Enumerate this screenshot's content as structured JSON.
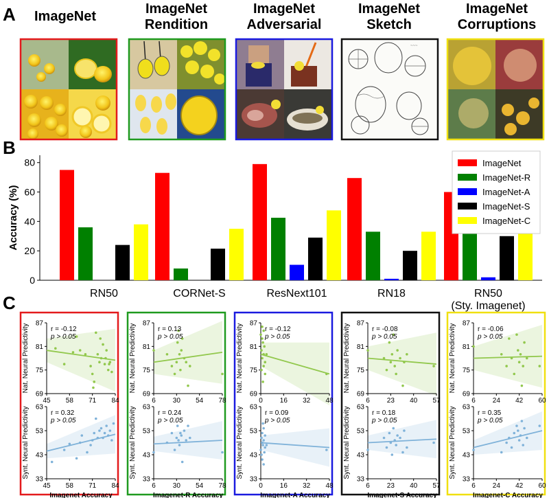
{
  "panel_letters": {
    "a": "A",
    "b": "B",
    "c": "C"
  },
  "panel_a": {
    "datasets": [
      {
        "line1": "ImageNet",
        "line2": "",
        "border": "#e31a1c"
      },
      {
        "line1": "ImageNet",
        "line2": "Rendition",
        "border": "#1f9a1f"
      },
      {
        "line1": "ImageNet",
        "line2": "Adversarial",
        "border": "#1a1adf"
      },
      {
        "line1": "ImageNet",
        "line2": "Sketch",
        "border": "#111111"
      },
      {
        "line1": "ImageNet",
        "line2": "Corruptions",
        "border": "#f0e010"
      }
    ]
  },
  "chart_data": [
    {
      "type": "bar",
      "panel": "B",
      "ylabel": "Accuracy (%)",
      "ylim": [
        0,
        85
      ],
      "yticks": [
        0,
        20,
        40,
        60,
        80
      ],
      "categories": [
        "RN50",
        "CORNet-S",
        "ResNext101",
        "RN18",
        "RN50\n(Sty. Imagenet)"
      ],
      "category_lines": [
        [
          "RN50"
        ],
        [
          "CORNet-S"
        ],
        [
          "ResNext101"
        ],
        [
          "RN18"
        ],
        [
          "RN50",
          "(Sty. Imagenet)"
        ]
      ],
      "legend_position": "top-right",
      "series": [
        {
          "name": "ImageNet",
          "color": "#ff0000",
          "values": [
            75,
            73,
            79,
            69.5,
            60
          ]
        },
        {
          "name": "ImageNet-R",
          "color": "#008000",
          "values": [
            36,
            8,
            42.5,
            33,
            40
          ]
        },
        {
          "name": "ImageNet-A",
          "color": "#0000ff",
          "values": [
            0,
            0,
            10.5,
            1,
            2
          ]
        },
        {
          "name": "ImageNet-S",
          "color": "#000000",
          "values": [
            24,
            21.5,
            29,
            20,
            30
          ]
        },
        {
          "name": "ImageNet-C",
          "color": "#ffff00",
          "values": [
            38,
            35,
            47.5,
            33,
            40
          ]
        }
      ]
    },
    {
      "type": "scatter",
      "panel": "C",
      "columns": [
        {
          "xlabel": "Imagenet Accuracy",
          "border": "#e31a1c",
          "xlim": [
            45,
            84
          ],
          "xticks": [
            45,
            58,
            71,
            84
          ],
          "top": {
            "r": "r = -0.12",
            "p": "p > 0.05",
            "line": [
              80,
              77.5
            ],
            "points": [
              [
                50,
                80.5
              ],
              [
                55,
                76.5
              ],
              [
                60,
                79.5
              ],
              [
                62,
                83.5
              ],
              [
                64,
                80
              ],
              [
                67,
                79
              ],
              [
                70,
                76
              ],
              [
                71,
                74
              ],
              [
                71.5,
                70.5
              ],
              [
                72,
                72
              ],
              [
                73,
                84.5
              ],
              [
                74,
                79
              ],
              [
                75,
                77
              ],
              [
                75.5,
                83
              ],
              [
                76,
                78
              ],
              [
                77,
                81.5
              ],
              [
                78,
                76.5
              ],
              [
                78.5,
                78
              ],
              [
                79,
                80
              ],
              [
                80,
                75
              ],
              [
                80.5,
                76.5
              ],
              [
                81,
                77
              ],
              [
                82,
                74.5
              ]
            ]
          },
          "bottom": {
            "r": "r = 0.32",
            "p": "p > 0.05",
            "line": [
              44.5,
              51.5
            ],
            "points": [
              [
                48,
                40
              ],
              [
                55,
                45
              ],
              [
                58,
                47.5
              ],
              [
                62,
                41.5
              ],
              [
                64,
                48
              ],
              [
                65,
                51
              ],
              [
                68,
                44
              ],
              [
                70,
                47
              ],
              [
                71,
                49
              ],
              [
                72,
                52
              ],
              [
                73,
                58
              ],
              [
                74,
                50
              ],
              [
                75,
                53
              ],
              [
                76,
                54
              ],
              [
                77,
                50
              ],
              [
                78,
                52
              ],
              [
                79,
                55
              ],
              [
                80,
                51
              ],
              [
                81,
                53
              ],
              [
                82,
                49
              ],
              [
                83,
                56
              ]
            ]
          }
        },
        {
          "xlabel": "Imagenet-R Accuracy",
          "border": "#1f9a1f",
          "xlim": [
            6,
            78
          ],
          "xticks": [
            6,
            30,
            54,
            78
          ],
          "top": {
            "r": "r = 0.13",
            "p": "p > 0.05",
            "line": [
              77,
              79.5
            ],
            "points": [
              [
                6,
                80
              ],
              [
                20,
                79
              ],
              [
                25,
                76
              ],
              [
                28,
                74
              ],
              [
                30,
                77
              ],
              [
                31,
                82
              ],
              [
                32,
                85
              ],
              [
                33,
                79
              ],
              [
                34,
                75
              ],
              [
                35,
                80
              ],
              [
                36,
                83
              ],
              [
                38,
                78
              ],
              [
                40,
                77
              ],
              [
                42,
                71
              ],
              [
                44,
                76
              ],
              [
                78,
                74
              ]
            ]
          },
          "bottom": {
            "r": "r = 0.24",
            "p": "p > 0.05",
            "line": [
              47.5,
              49
            ],
            "points": [
              [
                6,
                44
              ],
              [
                20,
                48
              ],
              [
                25,
                52
              ],
              [
                28,
                45
              ],
              [
                30,
                50
              ],
              [
                31,
                55
              ],
              [
                32,
                49
              ],
              [
                33,
                47
              ],
              [
                34,
                52
              ],
              [
                35,
                51
              ],
              [
                36,
                40
              ],
              [
                38,
                53
              ],
              [
                40,
                49
              ],
              [
                42,
                55
              ],
              [
                44,
                50
              ],
              [
                78,
                44
              ]
            ]
          }
        },
        {
          "xlabel": "Imagenet-A Accuracy",
          "border": "#1a1adf",
          "xlim": [
            0,
            48
          ],
          "xticks": [
            0,
            16,
            32,
            48
          ],
          "top": {
            "r": "r = -0.12",
            "p": "p > 0.05",
            "line": [
              79,
              74
            ],
            "points": [
              [
                0,
                84
              ],
              [
                0.5,
                80
              ],
              [
                1,
                86
              ],
              [
                1,
                78
              ],
              [
                1.5,
                82
              ],
              [
                2,
                79
              ],
              [
                2,
                76
              ],
              [
                2.5,
                81
              ],
              [
                3,
                77
              ],
              [
                3,
                74
              ],
              [
                1,
                83
              ],
              [
                0.5,
                75
              ],
              [
                2,
                85
              ],
              [
                1.5,
                72
              ],
              [
                4,
                79
              ],
              [
                46,
                74
              ]
            ]
          },
          "bottom": {
            "r": "r = 0.09",
            "p": "p > 0.05",
            "line": [
              48,
              46
            ],
            "points": [
              [
                0,
                45
              ],
              [
                0.5,
                50
              ],
              [
                1,
                52
              ],
              [
                1,
                41
              ],
              [
                1.5,
                47
              ],
              [
                2,
                49
              ],
              [
                2,
                54
              ],
              [
                2.5,
                44
              ],
              [
                3,
                46
              ],
              [
                3,
                51
              ],
              [
                1,
                48
              ],
              [
                0.5,
                43
              ],
              [
                2,
                39
              ],
              [
                1.5,
                56
              ],
              [
                4,
                47
              ],
              [
                46,
                45
              ]
            ]
          }
        },
        {
          "xlabel": "Imagenet-S Accuracy",
          "border": "#111111",
          "xlim": [
            6,
            57
          ],
          "xticks": [
            6,
            23,
            40,
            57
          ],
          "top": {
            "r": "r = -0.08",
            "p": "p > 0.05",
            "line": [
              78,
              76.5
            ],
            "points": [
              [
                6,
                80
              ],
              [
                18,
                78
              ],
              [
                20,
                75
              ],
              [
                22,
                82
              ],
              [
                23,
                77
              ],
              [
                24,
                79
              ],
              [
                25,
                84
              ],
              [
                26,
                76
              ],
              [
                27,
                74
              ],
              [
                28,
                80
              ],
              [
                30,
                78
              ],
              [
                32,
                71
              ],
              [
                33,
                77
              ],
              [
                35,
                79
              ],
              [
                55,
                76
              ]
            ]
          },
          "bottom": {
            "r": "r = 0.18",
            "p": "p > 0.05",
            "line": [
              48,
              49.5
            ],
            "points": [
              [
                6,
                45
              ],
              [
                18,
                50
              ],
              [
                20,
                46
              ],
              [
                22,
                52
              ],
              [
                23,
                48
              ],
              [
                24,
                43
              ],
              [
                25,
                54
              ],
              [
                26,
                49
              ],
              [
                27,
                47
              ],
              [
                28,
                51
              ],
              [
                30,
                50
              ],
              [
                32,
                44
              ],
              [
                33,
                53
              ],
              [
                35,
                46
              ],
              [
                55,
                48
              ]
            ]
          }
        },
        {
          "xlabel": "Imagenet-C Accuracy",
          "border": "#f0e010",
          "xlim": [
            6,
            60
          ],
          "xticks": [
            6,
            24,
            42,
            60
          ],
          "top": {
            "r": "r = -0.06",
            "p": "p > 0.05",
            "line": [
              78,
              78.5
            ],
            "points": [
              [
                6,
                81
              ],
              [
                28,
                79
              ],
              [
                32,
                76
              ],
              [
                34,
                83
              ],
              [
                36,
                78
              ],
              [
                38,
                74
              ],
              [
                40,
                84
              ],
              [
                41,
                80
              ],
              [
                42,
                77
              ],
              [
                43,
                79
              ],
              [
                44,
                71
              ],
              [
                45,
                76
              ],
              [
                46,
                82
              ],
              [
                48,
                78
              ],
              [
                58,
                76
              ]
            ]
          },
          "bottom": {
            "r": "r = 0.35",
            "p": "p > 0.05",
            "line": [
              46,
              53
            ],
            "points": [
              [
                6,
                45
              ],
              [
                28,
                44
              ],
              [
                32,
                48
              ],
              [
                34,
                50
              ],
              [
                36,
                46
              ],
              [
                38,
                52
              ],
              [
                40,
                55
              ],
              [
                41,
                53
              ],
              [
                42,
                49
              ],
              [
                43,
                51
              ],
              [
                44,
                57
              ],
              [
                45,
                47
              ],
              [
                46,
                54
              ],
              [
                48,
                50
              ],
              [
                58,
                55
              ]
            ]
          }
        }
      ],
      "top_ylabel": "Nat. Neural Predictivity",
      "top_ylim": [
        69,
        87
      ],
      "top_yticks": [
        69,
        75,
        81,
        87
      ],
      "top_color": "#92c84d",
      "bottom_ylabel": "Synt. Neural Predictivity",
      "bottom_ylim": [
        33,
        63
      ],
      "bottom_yticks": [
        33,
        43,
        53,
        63
      ],
      "bottom_color": "#7fb2d9"
    }
  ]
}
